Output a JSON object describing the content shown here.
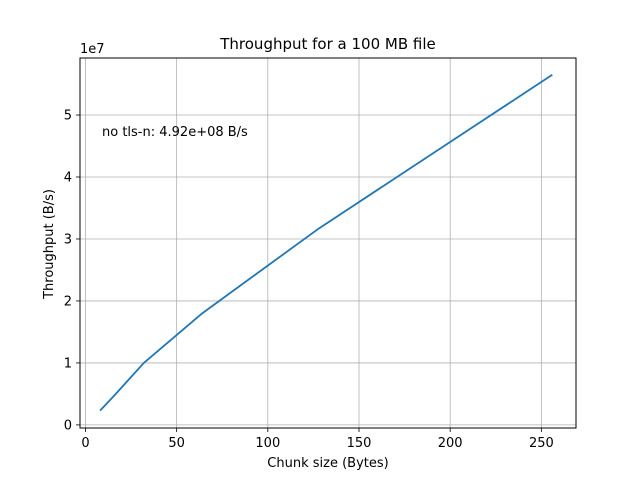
{
  "chart_data": {
    "type": "line",
    "title": "Throughput for a 100 MB file",
    "xlabel": "Chunk size (Bytes)",
    "ylabel": "Throughput (B/s)",
    "y_offset_label": "1e7",
    "xlim": [
      -3,
      269
    ],
    "ylim": [
      -0.05,
      5.92
    ],
    "y_scale_factor": 10000000,
    "xticks": [
      0,
      50,
      100,
      150,
      200,
      250
    ],
    "yticks": [
      0,
      1,
      2,
      3,
      4,
      5
    ],
    "grid": true,
    "annotation": "no tls-n: 4.92e+08 B/s",
    "series": [
      {
        "color": "#1f77b4",
        "x": [
          8,
          16,
          32,
          64,
          128,
          256
        ],
        "y": [
          0.23,
          0.48,
          1.0,
          1.8,
          3.17,
          5.65
        ]
      }
    ]
  }
}
